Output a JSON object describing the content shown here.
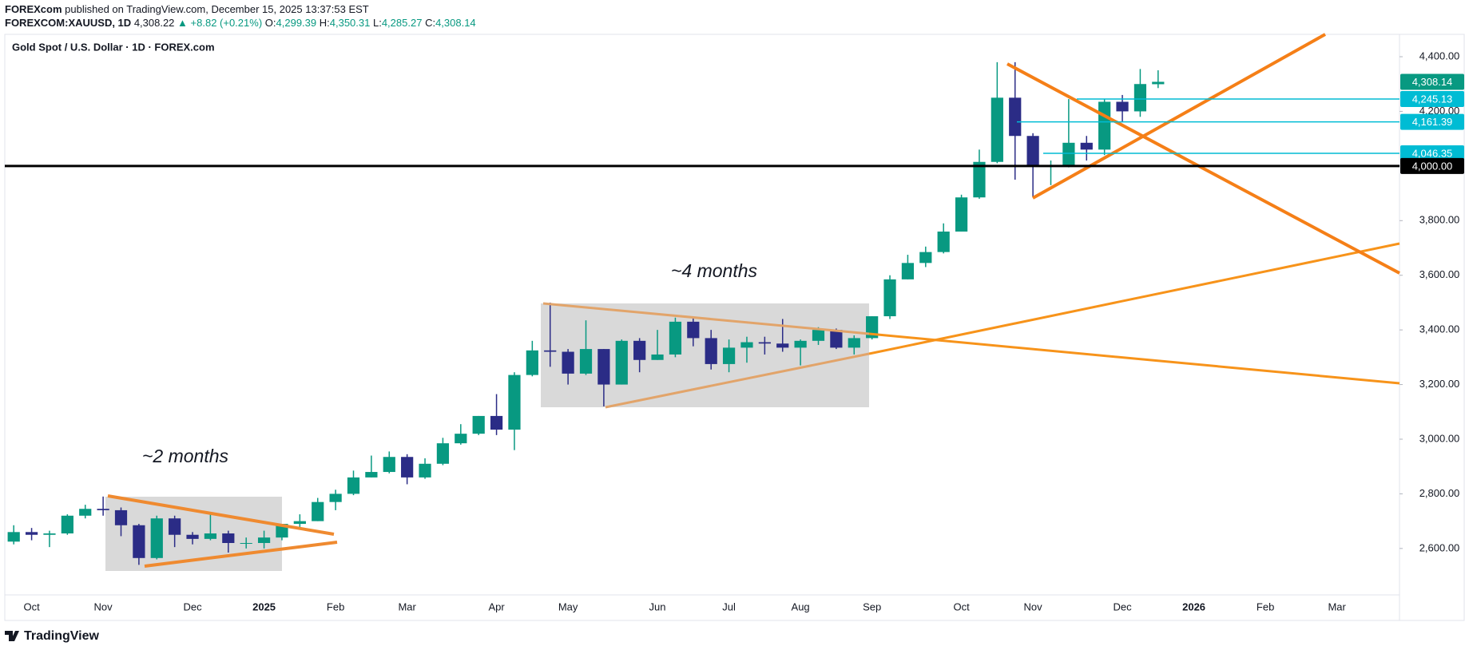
{
  "header": {
    "publisher": "FOREXcom",
    "published": "published on TradingView.com, December 15, 2025 13:37:53 EST",
    "symbol": "FOREXCOM:XAUUSD, 1D",
    "price": "4,308.22",
    "change": "▲ +8.82 (+0.21%)",
    "o_label": "O:",
    "o": "4,299.39",
    "h_label": "H:",
    "h": "4,350.31",
    "l_label": "L:",
    "l": "4,285.27",
    "c_label": "C:",
    "c": "4,308.14"
  },
  "chart_data": {
    "type": "candlestick",
    "title": "Gold Spot / U.S. Dollar · 1D · FOREX.com",
    "categories": [
      null,
      "Oct",
      null,
      null,
      null,
      "Nov",
      null,
      null,
      null,
      null,
      "Dec",
      null,
      null,
      null,
      "2025",
      null,
      null,
      null,
      "Feb",
      null,
      null,
      null,
      "Mar",
      null,
      null,
      null,
      null,
      "Apr",
      null,
      null,
      null,
      "May",
      null,
      null,
      null,
      null,
      "Jun",
      null,
      null,
      null,
      "Jul",
      null,
      null,
      null,
      "Aug",
      null,
      null,
      null,
      "Sep",
      null,
      null,
      null,
      null,
      "Oct",
      null,
      null,
      null,
      "Nov",
      null,
      null,
      null,
      null,
      "Dec",
      null,
      null,
      null,
      "2026",
      null,
      null,
      null,
      "Feb",
      null,
      null,
      null,
      "Mar",
      null,
      null,
      null
    ],
    "open": [
      2625,
      2660,
      2650,
      2655,
      2720,
      2745,
      2740,
      2685,
      2565,
      2710,
      2650,
      2635,
      2655,
      2620,
      2620,
      2640,
      2690,
      2700,
      2770,
      2800,
      2860,
      2880,
      2935,
      2860,
      2910,
      2985,
      3020,
      3085,
      3035,
      3235,
      3325,
      3320,
      3240,
      3330,
      3200,
      3360,
      3290,
      3310,
      3430,
      3370,
      3275,
      3335,
      3355,
      3350,
      3335,
      3360,
      3400,
      3335,
      3370,
      3450,
      3585,
      3645,
      3685,
      3760,
      3885,
      4015,
      4250,
      4110,
      4000,
      4000,
      4085,
      4060,
      4235,
      4200,
      4299.39,
      null,
      null,
      null,
      null,
      null,
      null,
      null,
      null,
      null,
      null,
      null,
      null,
      null
    ],
    "high": [
      2685,
      2675,
      2665,
      2725,
      2760,
      2790,
      2750,
      2690,
      2720,
      2720,
      2660,
      2725,
      2665,
      2640,
      2665,
      2690,
      2725,
      2785,
      2815,
      2885,
      2940,
      2955,
      2945,
      2930,
      3005,
      3055,
      3085,
      3165,
      3245,
      3360,
      3500,
      3330,
      3435,
      3330,
      3365,
      3370,
      3400,
      3445,
      3450,
      3400,
      3365,
      3375,
      3375,
      3440,
      3365,
      3410,
      3405,
      3380,
      3450,
      3600,
      3675,
      3705,
      3790,
      3895,
      4060,
      4380,
      4380,
      4120,
      4020,
      4245,
      4110,
      4245,
      4260,
      4355,
      4350.31,
      null,
      null,
      null,
      null,
      null,
      null,
      null,
      null,
      null,
      null,
      null,
      null,
      null
    ],
    "low": [
      2615,
      2630,
      2605,
      2650,
      2710,
      2720,
      2645,
      2540,
      2560,
      2605,
      2615,
      2630,
      2585,
      2600,
      2600,
      2630,
      2670,
      2700,
      2740,
      2795,
      2860,
      2875,
      2835,
      2855,
      2905,
      2980,
      3015,
      3015,
      2960,
      3230,
      3265,
      3200,
      3235,
      3120,
      3200,
      3245,
      3290,
      3300,
      3340,
      3255,
      3245,
      3280,
      3310,
      3320,
      3270,
      3345,
      3330,
      3310,
      3365,
      3440,
      3585,
      3630,
      3680,
      3760,
      3880,
      4010,
      3950,
      3885,
      3930,
      3995,
      4020,
      4040,
      4160,
      4180,
      4285.27,
      null,
      null,
      null,
      null,
      null,
      null,
      null,
      null,
      null,
      null,
      null,
      null,
      null
    ],
    "close": [
      2660,
      2650,
      2655,
      2720,
      2745,
      2740,
      2685,
      2565,
      2710,
      2650,
      2635,
      2655,
      2620,
      2620,
      2640,
      2690,
      2700,
      2770,
      2800,
      2860,
      2880,
      2935,
      2860,
      2910,
      2985,
      3020,
      3085,
      3035,
      3235,
      3325,
      3320,
      3240,
      3330,
      3200,
      3360,
      3290,
      3310,
      3430,
      3370,
      3275,
      3335,
      3355,
      3350,
      3335,
      3360,
      3400,
      3335,
      3370,
      3450,
      3585,
      3645,
      3685,
      3760,
      3885,
      4015,
      4250,
      4110,
      4000,
      4000,
      4085,
      4060,
      4235,
      4200,
      4300,
      4308.14,
      null,
      null,
      null,
      null,
      null,
      null,
      null,
      null,
      null,
      null,
      null,
      null,
      null
    ],
    "up_color": "#089981",
    "down_color": "#2b2c86",
    "ylim": [
      2430,
      4479
    ],
    "yticks": [
      {
        "value": 2600,
        "label": "2,600.00"
      },
      {
        "value": 2800,
        "label": "2,800.00"
      },
      {
        "value": 3000,
        "label": "3,000.00"
      },
      {
        "value": 3200,
        "label": "3,200.00"
      },
      {
        "value": 3400,
        "label": "3,400.00"
      },
      {
        "value": 3600,
        "label": "3,600.00"
      },
      {
        "value": 3800,
        "label": "3,800.00"
      },
      {
        "value": 4000,
        "label": "4,000.00"
      },
      {
        "value": 4200,
        "label": "4,200.00"
      },
      {
        "value": 4400,
        "label": "4,400.00"
      }
    ],
    "levels": [
      {
        "value": 4308.14,
        "label": "4,308.14",
        "color": "#089981"
      },
      {
        "value": 4245.13,
        "label": "4,245.13",
        "color": "#00bcd4"
      },
      {
        "value": 4161.39,
        "label": "4,161.39",
        "color": "#00bcd4"
      },
      {
        "value": 4046.35,
        "label": "4,046.35",
        "color": "#00bcd4"
      },
      {
        "value": 4000,
        "label": "4,000.00",
        "color": "#000000"
      }
    ],
    "annotations": [
      "~2 months",
      "~4 months"
    ]
  },
  "footer": {
    "brand": "TradingView"
  }
}
